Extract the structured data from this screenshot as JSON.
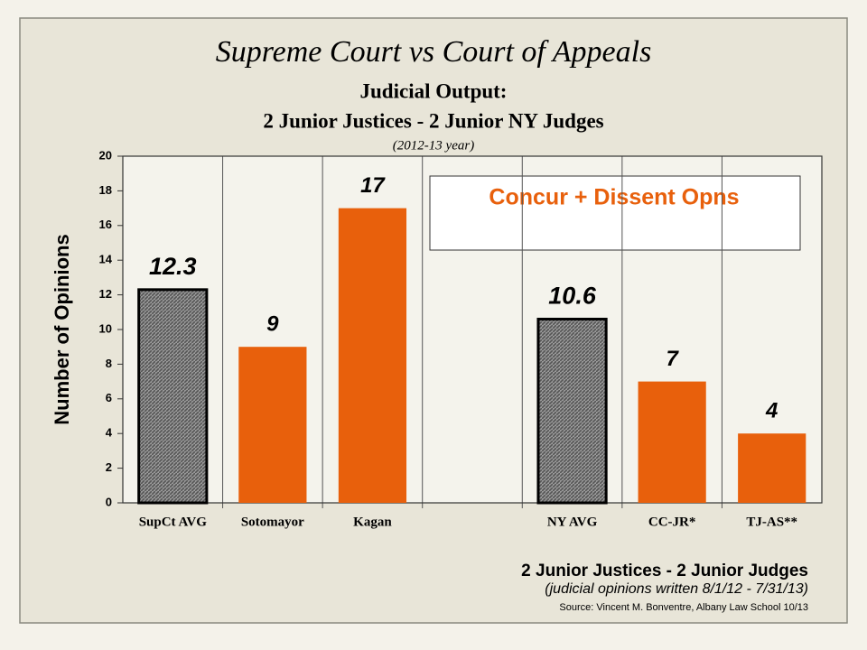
{
  "chart_data": {
    "type": "bar",
    "title": "Supreme Court vs Court of Appeals",
    "subtitle": "Judicial Output:",
    "subtitle2": "2 Junior Justices - 2 Junior NY Judges",
    "period": "(2012-13 year)",
    "ylabel": "Number of Opinions",
    "legend_box": "Concur + Dissent Opns",
    "categories": [
      "SupCt AVG",
      "Sotomayor",
      "Kagan",
      null,
      "NY AVG",
      "CC-JR*",
      "TJ-AS**"
    ],
    "values": [
      12.3,
      9,
      17,
      null,
      10.6,
      7,
      4
    ],
    "hatched": [
      true,
      false,
      false,
      null,
      true,
      false,
      false
    ],
    "color": "#e8600c",
    "hatch_color": "#555555",
    "ylim": [
      0,
      20
    ],
    "yticks": [
      0,
      2,
      4,
      6,
      8,
      10,
      12,
      14,
      16,
      18,
      20
    ],
    "grid": false,
    "footer": "2 Junior Justices -  2 Junior Judges",
    "footer_note": "(judicial opinions written 8/1/12 - 7/31/13)",
    "source": "Source: Vincent M. Bonventre,  Albany Law School  10/13"
  }
}
